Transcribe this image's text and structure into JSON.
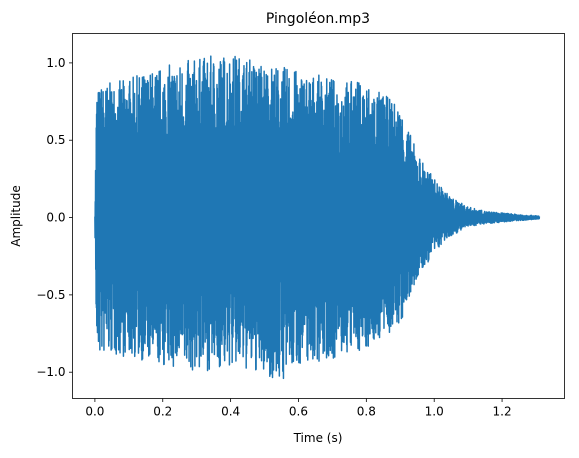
{
  "chart_data": {
    "type": "line",
    "title": "Pingoléon.mp3",
    "xlabel": "Time (s)",
    "ylabel": "Amplitude",
    "xlim": [
      -0.066,
      1.384
    ],
    "ylim": [
      -1.17,
      1.19
    ],
    "x_ticks": [
      0.0,
      0.2,
      0.4,
      0.6,
      0.8,
      1.0,
      1.2
    ],
    "x_tick_labels": [
      "0.0",
      "0.2",
      "0.4",
      "0.6",
      "0.8",
      "1.0",
      "1.2"
    ],
    "y_ticks": [
      -1.0,
      -0.5,
      0.0,
      0.5,
      1.0
    ],
    "y_tick_labels": [
      "−1.0",
      "−0.5",
      "0.0",
      "0.5",
      "1.0"
    ],
    "grid": false,
    "series": [
      {
        "color": "#1f77b4",
        "envelope": {
          "time": [
            0.0,
            0.005,
            0.02,
            0.1,
            0.2,
            0.3,
            0.4,
            0.5,
            0.55,
            0.6,
            0.7,
            0.8,
            0.85,
            0.9,
            0.95,
            1.0,
            1.02,
            1.05,
            1.1,
            1.15,
            1.2,
            1.25,
            1.31
          ],
          "max_amplitude": [
            0.05,
            0.84,
            0.86,
            0.9,
            0.98,
            1.03,
            1.07,
            1.0,
            0.98,
            0.95,
            0.9,
            0.88,
            0.8,
            0.72,
            0.42,
            0.25,
            0.2,
            0.13,
            0.07,
            0.04,
            0.03,
            0.02,
            0.01
          ],
          "min_amplitude": [
            -0.05,
            -0.92,
            -0.9,
            -0.9,
            -0.97,
            -1.0,
            -0.97,
            -1.02,
            -1.07,
            -0.95,
            -0.92,
            -0.85,
            -0.78,
            -0.7,
            -0.4,
            -0.23,
            -0.18,
            -0.12,
            -0.06,
            -0.04,
            -0.03,
            -0.02,
            -0.01
          ]
        }
      }
    ]
  }
}
